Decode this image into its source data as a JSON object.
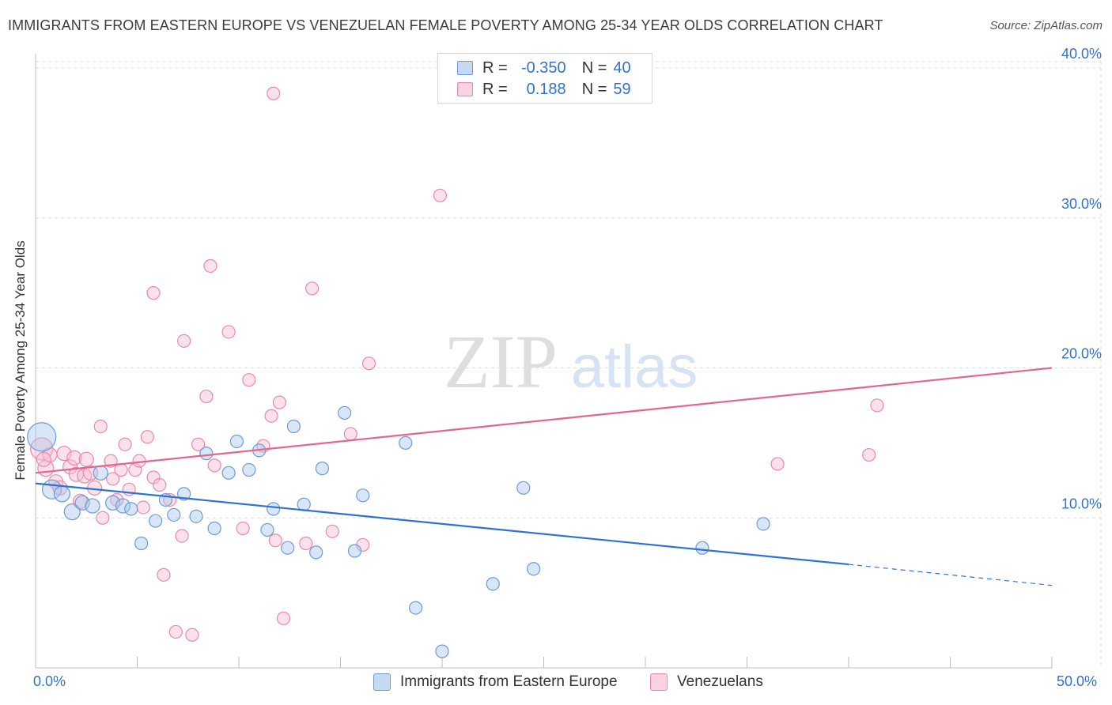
{
  "header": {
    "title": "IMMIGRANTS FROM EASTERN EUROPE VS VENEZUELAN FEMALE POVERTY AMONG 25-34 YEAR OLDS CORRELATION CHART",
    "source": "Source: ZipAtlas.com"
  },
  "watermark": {
    "zip": "ZIP",
    "atlas": "atlas"
  },
  "legend": {
    "r_label": "R =",
    "n_label": "N =",
    "series": [
      {
        "r": "-0.350",
        "n": "40"
      },
      {
        "r": "0.188",
        "n": "59"
      }
    ]
  },
  "colors": {
    "blue_fill": "#aac8ee",
    "blue_stroke": "#6d9bd6",
    "blue_line": "#2f73d0",
    "pink_fill": "#f7bcd0",
    "pink_stroke": "#e98aab",
    "pink_line": "#e0688f",
    "axis_text": "#3373c4"
  },
  "chart_data": {
    "type": "scatter",
    "title": "IMMIGRANTS FROM EASTERN EUROPE VS VENEZUELAN FEMALE POVERTY AMONG 25-34 YEAR OLDS CORRELATION CHART",
    "xlabel": "",
    "ylabel": "Female Poverty Among 25-34 Year Olds",
    "xlim": [
      0,
      50
    ],
    "ylim": [
      0,
      40
    ],
    "x_tick_labels": [
      "0.0%",
      "50.0%"
    ],
    "y_ticks": [
      10,
      20,
      30,
      40
    ],
    "y_tick_labels": [
      "10.0%",
      "20.0%",
      "30.0%",
      "40.0%"
    ],
    "grid": true,
    "legend_position": "top-center",
    "series": [
      {
        "name": "Immigrants from Eastern Europe",
        "r": -0.35,
        "n": 40,
        "trend": {
          "x0": 0,
          "y0": 12.3,
          "x1": 40,
          "y1": 6.9,
          "dashed_to_x": 50,
          "dashed_to_y": 5.5
        },
        "points": [
          [
            0.3,
            15.4,
            18
          ],
          [
            0.8,
            11.9,
            12
          ],
          [
            1.3,
            11.6,
            10
          ],
          [
            1.8,
            10.4,
            10
          ],
          [
            2.3,
            11.0,
            9
          ],
          [
            2.8,
            10.8,
            9
          ],
          [
            3.2,
            13.0,
            9
          ],
          [
            3.8,
            11.0,
            9
          ],
          [
            4.3,
            10.8,
            9
          ],
          [
            4.7,
            10.6,
            8
          ],
          [
            5.2,
            8.3,
            8
          ],
          [
            5.9,
            9.8,
            8
          ],
          [
            6.4,
            11.2,
            8
          ],
          [
            6.8,
            10.2,
            8
          ],
          [
            7.3,
            11.6,
            8
          ],
          [
            7.9,
            10.1,
            8
          ],
          [
            8.4,
            14.3,
            8
          ],
          [
            8.8,
            9.3,
            8
          ],
          [
            9.5,
            13.0,
            8
          ],
          [
            9.9,
            15.1,
            8
          ],
          [
            10.5,
            13.2,
            8
          ],
          [
            11.0,
            14.5,
            8
          ],
          [
            11.4,
            9.2,
            8
          ],
          [
            11.7,
            10.6,
            8
          ],
          [
            12.4,
            8.0,
            8
          ],
          [
            12.7,
            16.1,
            8
          ],
          [
            13.2,
            10.9,
            8
          ],
          [
            13.8,
            7.7,
            8
          ],
          [
            14.1,
            13.3,
            8
          ],
          [
            15.2,
            17.0,
            8
          ],
          [
            15.7,
            7.8,
            8
          ],
          [
            16.1,
            11.5,
            8
          ],
          [
            18.2,
            15.0,
            8
          ],
          [
            18.7,
            4.0,
            8
          ],
          [
            20.0,
            1.1,
            8
          ],
          [
            22.5,
            5.6,
            8
          ],
          [
            24.0,
            12.0,
            8
          ],
          [
            24.5,
            6.6,
            8
          ],
          [
            32.8,
            8.0,
            8
          ],
          [
            35.8,
            9.6,
            8
          ]
        ]
      },
      {
        "name": "Venezuelans",
        "r": 0.188,
        "n": 59,
        "trend": {
          "x0": 0,
          "y0": 13.0,
          "x1": 50,
          "y1": 20.0
        },
        "points": [
          [
            0.3,
            14.6,
            14
          ],
          [
            0.5,
            13.3,
            10
          ],
          [
            0.7,
            14.2,
            9
          ],
          [
            1.0,
            12.4,
            9
          ],
          [
            1.2,
            12.0,
            9
          ],
          [
            1.4,
            14.3,
            9
          ],
          [
            1.7,
            13.4,
            9
          ],
          [
            1.9,
            14.0,
            9
          ],
          [
            2.0,
            12.9,
            9
          ],
          [
            2.2,
            11.1,
            9
          ],
          [
            2.4,
            12.8,
            9
          ],
          [
            2.7,
            13.0,
            9
          ],
          [
            2.9,
            12.0,
            9
          ],
          [
            3.2,
            16.1,
            8
          ],
          [
            3.3,
            10.0,
            8
          ],
          [
            3.7,
            13.8,
            8
          ],
          [
            4.0,
            11.2,
            8
          ],
          [
            4.2,
            13.2,
            8
          ],
          [
            4.4,
            14.9,
            8
          ],
          [
            4.6,
            11.9,
            8
          ],
          [
            4.9,
            13.2,
            8
          ],
          [
            5.1,
            13.8,
            8
          ],
          [
            5.3,
            10.7,
            8
          ],
          [
            5.5,
            15.4,
            8
          ],
          [
            5.8,
            12.7,
            8
          ],
          [
            5.8,
            25.0,
            8
          ],
          [
            6.1,
            12.2,
            8
          ],
          [
            6.3,
            6.2,
            8
          ],
          [
            6.6,
            11.2,
            8
          ],
          [
            6.9,
            2.4,
            8
          ],
          [
            7.3,
            21.8,
            8
          ],
          [
            7.7,
            2.2,
            8
          ],
          [
            8.0,
            14.9,
            8
          ],
          [
            8.4,
            18.1,
            8
          ],
          [
            8.6,
            26.8,
            8
          ],
          [
            8.8,
            13.5,
            8
          ],
          [
            9.5,
            22.4,
            8
          ],
          [
            10.2,
            9.3,
            8
          ],
          [
            10.5,
            19.2,
            8
          ],
          [
            11.2,
            14.8,
            8
          ],
          [
            11.6,
            16.8,
            8
          ],
          [
            12.0,
            17.7,
            8
          ],
          [
            11.8,
            8.5,
            8
          ],
          [
            12.2,
            3.3,
            8
          ],
          [
            13.3,
            8.3,
            8
          ],
          [
            13.6,
            25.3,
            8
          ],
          [
            14.6,
            9.1,
            8
          ],
          [
            15.5,
            15.6,
            8
          ],
          [
            16.1,
            8.2,
            8
          ],
          [
            16.4,
            20.3,
            8
          ],
          [
            19.9,
            31.5,
            8
          ],
          [
            11.7,
            38.3,
            8
          ],
          [
            7.2,
            8.8,
            8
          ],
          [
            36.5,
            13.6,
            8
          ],
          [
            41.0,
            14.2,
            8
          ],
          [
            41.4,
            17.5,
            8
          ],
          [
            0.4,
            13.9,
            9
          ],
          [
            2.5,
            13.9,
            9
          ],
          [
            3.8,
            12.6,
            8
          ]
        ]
      }
    ]
  },
  "bottom_legend": {
    "blue_label": "Immigrants from Eastern Europe",
    "pink_label": "Venezuelans"
  }
}
